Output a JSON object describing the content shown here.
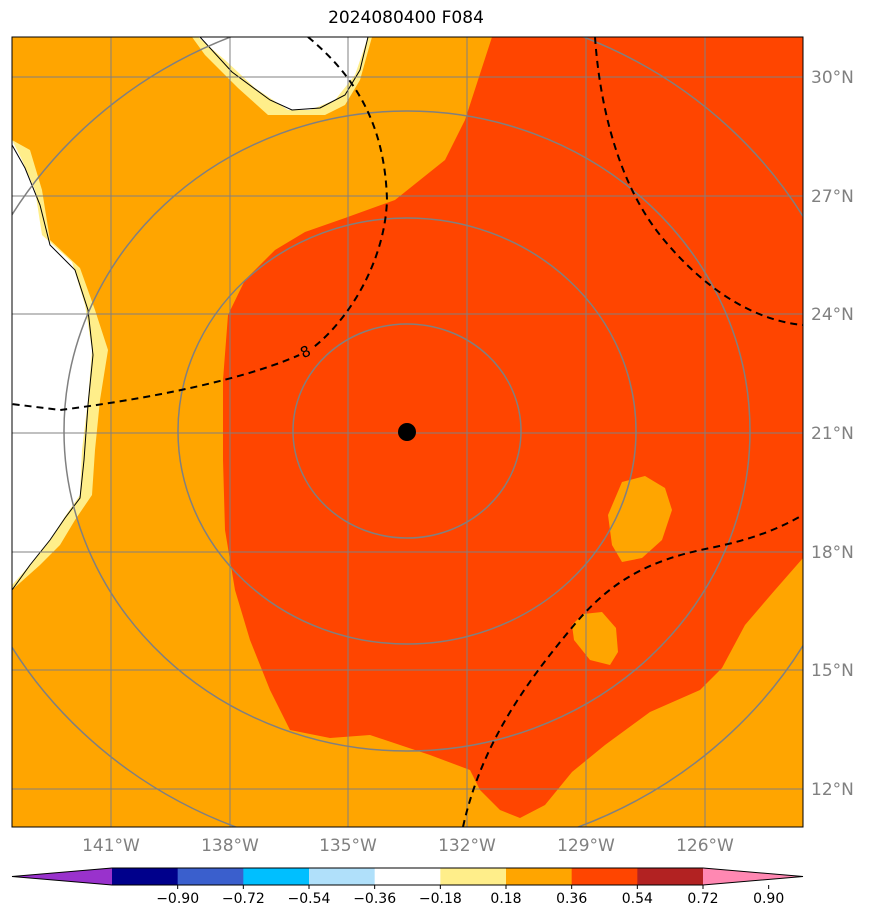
{
  "title": "2024080400 F084",
  "map": {
    "lat_labels": [
      "30°N",
      "27°N",
      "24°N",
      "21°N",
      "18°N",
      "15°N",
      "12°N"
    ],
    "lon_labels": [
      "141°W",
      "138°W",
      "135°W",
      "132°W",
      "129°W",
      "126°W"
    ],
    "storm_center": {
      "lat": 21.0,
      "lon": -133.4,
      "marker": "black-dot"
    },
    "range_rings": 4,
    "contour_label": "8",
    "fill_colors": {
      "band_0.18_0.36": "#ffee8a",
      "band_0.36_0.54": "#ffa500",
      "band_0.54_0.72": "#ff4500",
      "missing": "#ffffff"
    },
    "grid_color": "#808080",
    "contour_style": "dashed-black"
  },
  "colorbar": {
    "ticks": [
      "−0.90",
      "−0.72",
      "−0.54",
      "−0.36",
      "−0.18",
      "0.18",
      "0.36",
      "0.54",
      "0.72",
      "0.90"
    ],
    "colors": [
      "#9932cc",
      "#00008b",
      "#3a5fcd",
      "#00bfff",
      "#b0e0fa",
      "#ffffff",
      "#ffee8a",
      "#ffa500",
      "#ff4500",
      "#b22222",
      "#ff88b2"
    ]
  }
}
